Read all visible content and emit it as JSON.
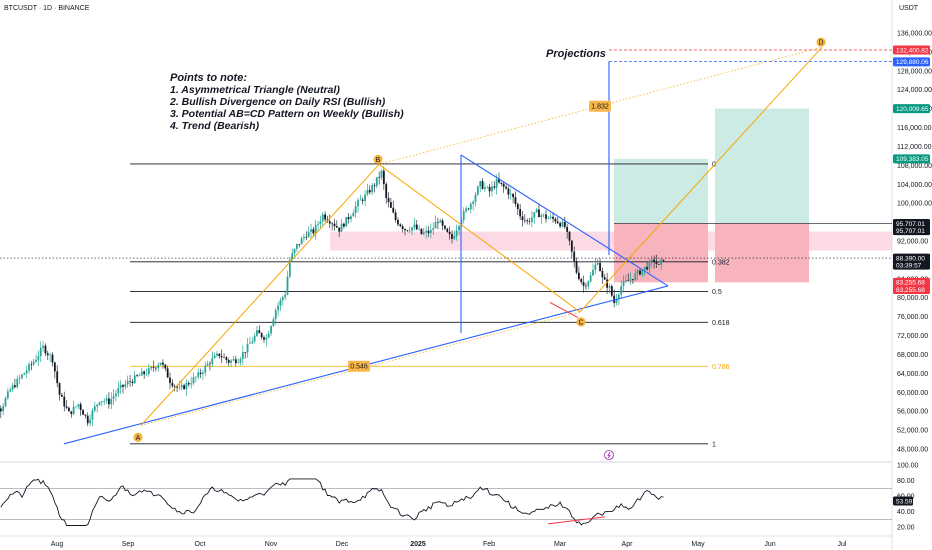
{
  "header": {
    "symbol": "BTCUSDT · 1D · BINANCE",
    "currency": "USDT"
  },
  "notes": {
    "title": "Points to note:",
    "items": [
      "1. Asymmetrical Triangle (Neutral)",
      "2. Bullish Divergence on Daily RSI (Bullish)",
      "3. Potential AB=CD Pattern on Weekly (Bullish)",
      "4. Trend (Bearish)"
    ]
  },
  "projections_label": "Projections",
  "colors": {
    "up": "#26a69a",
    "down": "#131722",
    "fib": "#131722",
    "fib_786": "#f7a600",
    "trendline": "#2962ff",
    "abcd": "#f7a600",
    "target": "#26a69a",
    "stop": "#f23645",
    "rsi": "#131722",
    "zone": "#f8bbd0"
  },
  "chart_data": {
    "type": "candlestick",
    "x_ticks": [
      "Aug",
      "Sep",
      "Oct",
      "Nov",
      "Dec",
      "2025",
      "Feb",
      "Mar",
      "Apr",
      "May",
      "Jun",
      "Jul"
    ],
    "y_ticks": [
      "136,000.00",
      "132,000.00",
      "128,000.00",
      "124,000.00",
      "120,000.00",
      "116,000.00",
      "112,000.00",
      "108,000.00",
      "104,000.00",
      "100,000.00",
      "96,000.00",
      "92,000.00",
      "88,000.00",
      "84,000.00",
      "80,000.00",
      "76,000.00",
      "72,000.00",
      "68,000.00",
      "64,000.00",
      "60,000.00",
      "56,000.00",
      "52,000.00",
      "48,000.00"
    ],
    "ylim": [
      46000,
      138000
    ],
    "price_tags": [
      {
        "label": "132,400.82",
        "value": 132400,
        "color": "#f23645"
      },
      {
        "label": "129,880.06",
        "value": 129880,
        "color": "#2962ff"
      },
      {
        "label": "120,009.65",
        "value": 120009,
        "color": "#089981"
      },
      {
        "label": "109,383.05",
        "value": 109383,
        "color": "#089981"
      },
      {
        "label": "95,707.01",
        "value": 95707,
        "color": "#131722"
      },
      {
        "label": "95,707.01",
        "value": 94200,
        "color": "#131722"
      },
      {
        "label": "88,390.00",
        "value": 88390,
        "color": "#131722"
      },
      {
        "label": "03:39:57",
        "value": 86900,
        "color": "#131722"
      },
      {
        "label": "83,255.68",
        "value": 83256,
        "color": "#f23645"
      },
      {
        "label": "83,255.68",
        "value": 81750,
        "color": "#f23645"
      }
    ],
    "fib_levels": [
      {
        "label": "0",
        "value": 108300
      },
      {
        "label": "0.382",
        "value": 87600
      },
      {
        "label": "0.5",
        "value": 81300
      },
      {
        "label": "0.618",
        "value": 74800
      },
      {
        "label": "0.786",
        "value": 65500
      },
      {
        "label": "1",
        "value": 49100
      }
    ],
    "points": {
      "A": "A",
      "B": "B",
      "C": "C",
      "D": "D"
    },
    "ratios": {
      "bc": "0.546",
      "cd": "1.832"
    },
    "rsi": {
      "y_ticks": [
        "100.00",
        "80.00",
        "60.00",
        "40.00",
        "20.00"
      ],
      "value_label": "53.59",
      "upper": 70,
      "lower": 30
    },
    "candles": []
  }
}
